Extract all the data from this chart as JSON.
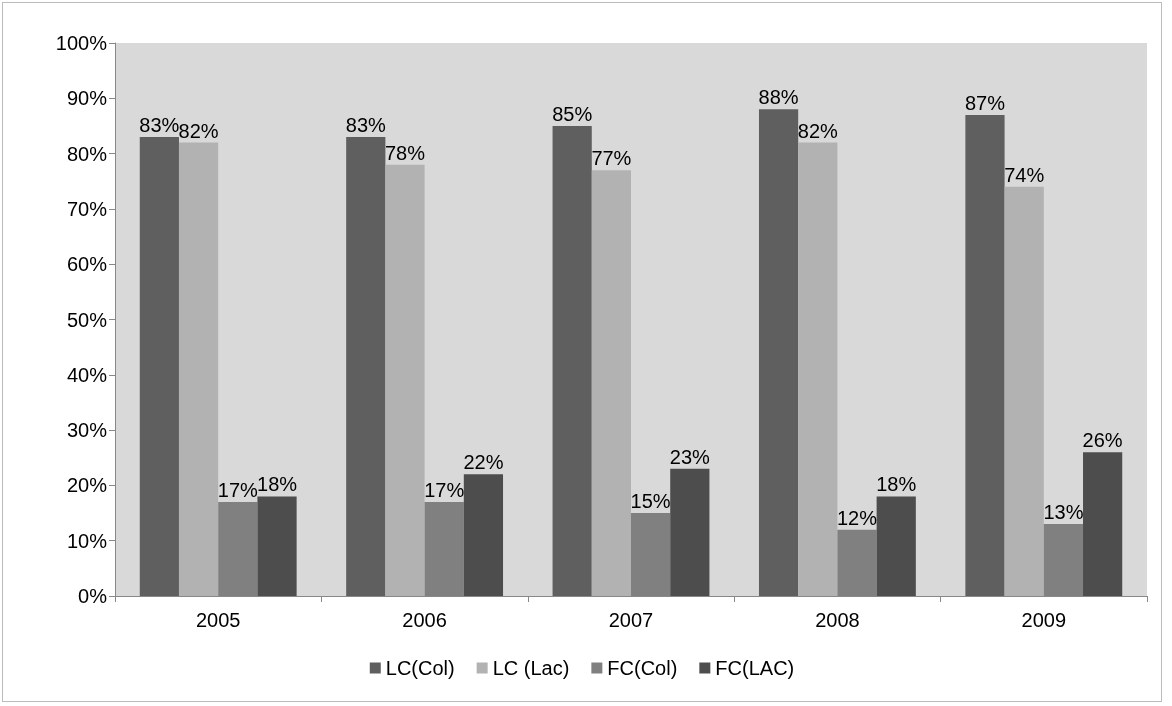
{
  "chart_data": {
    "type": "bar",
    "categories": [
      "2005",
      "2006",
      "2007",
      "2008",
      "2009"
    ],
    "series": [
      {
        "name": "LC(Col)",
        "color": "#5f5f5f",
        "values": [
          83,
          83,
          85,
          88,
          87
        ],
        "value_labels": [
          "83%",
          "83%",
          "85%",
          "88%",
          "87%"
        ]
      },
      {
        "name": "LC (Lac)",
        "color": "#b2b2b2",
        "values": [
          82,
          78,
          77,
          82,
          74
        ],
        "value_labels": [
          "82%",
          "78%",
          "77%",
          "82%",
          "74%"
        ]
      },
      {
        "name": "FC(Col)",
        "color": "#808080",
        "values": [
          17,
          17,
          15,
          12,
          13
        ],
        "value_labels": [
          "17%",
          "17%",
          "15%",
          "12%",
          "13%"
        ]
      },
      {
        "name": "FC(LAC)",
        "color": "#4d4d4d",
        "values": [
          18,
          22,
          23,
          18,
          26
        ],
        "value_labels": [
          "18%",
          "22%",
          "23%",
          "18%",
          "26%"
        ]
      }
    ],
    "ylim": [
      0,
      100
    ],
    "yticks": [
      {
        "value": 0,
        "label": "0%"
      },
      {
        "value": 10,
        "label": "10%"
      },
      {
        "value": 20,
        "label": "20%"
      },
      {
        "value": 30,
        "label": "30%"
      },
      {
        "value": 40,
        "label": "40%"
      },
      {
        "value": 50,
        "label": "50%"
      },
      {
        "value": 60,
        "label": "60%"
      },
      {
        "value": 70,
        "label": "70%"
      },
      {
        "value": 80,
        "label": "80%"
      },
      {
        "value": 90,
        "label": "90%"
      },
      {
        "value": 100,
        "label": "100%"
      }
    ],
    "grid": false,
    "legend": "bottom"
  }
}
